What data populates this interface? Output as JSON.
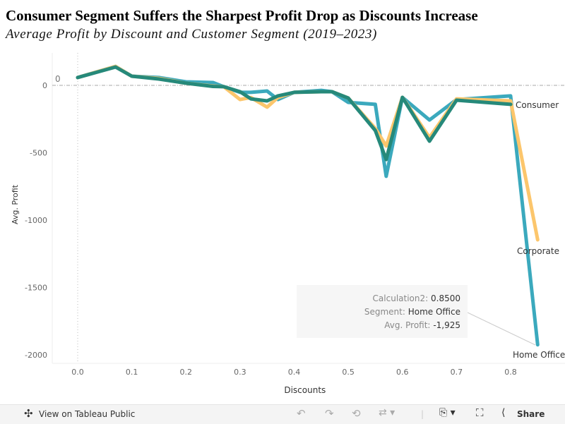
{
  "chart_data": {
    "type": "line",
    "title": "Consumer Segment Suffers the Sharpest Profit Drop as Discounts Increase",
    "subtitle": "Average Profit by Discount and Customer Segment (2019–2023)",
    "xlabel": "Discounts",
    "ylabel": "Avg. Profit",
    "xlim": [
      -0.05,
      0.88
    ],
    "ylim": [
      -2050,
      260
    ],
    "x_ticks": [
      "0.0",
      "0.1",
      "0.2",
      "0.3",
      "0.4",
      "0.5",
      "0.6",
      "0.7",
      "0.8"
    ],
    "y_ticks": [
      "0",
      "-500",
      "-1000",
      "-1500",
      "-2000"
    ],
    "reference_line": {
      "value": 0,
      "label": "0"
    },
    "grid": false,
    "series": [
      {
        "name": "Home Office",
        "color": "#3BA9BD",
        "x": [
          0,
          0.07,
          0.1,
          0.15,
          0.2,
          0.25,
          0.27,
          0.3,
          0.32,
          0.35,
          0.37,
          0.4,
          0.45,
          0.47,
          0.5,
          0.55,
          0.57,
          0.6,
          0.65,
          0.7,
          0.8,
          0.85
        ],
        "y": [
          58,
          141,
          68,
          58,
          26,
          21,
          -10,
          -52,
          -52,
          -42,
          -105,
          -52,
          -37,
          -47,
          -126,
          -141,
          -675,
          -89,
          -257,
          -105,
          -78,
          -1925
        ]
      },
      {
        "name": "Corporate",
        "color": "#FCC66C",
        "x": [
          0,
          0.07,
          0.1,
          0.15,
          0.2,
          0.25,
          0.27,
          0.3,
          0.32,
          0.35,
          0.37,
          0.4,
          0.45,
          0.47,
          0.5,
          0.55,
          0.57,
          0.6,
          0.65,
          0.7,
          0.8,
          0.85
        ],
        "y": [
          58,
          141,
          68,
          52,
          16,
          -5,
          -10,
          -105,
          -90,
          -162,
          -90,
          -52,
          -47,
          -47,
          -94,
          -320,
          -450,
          -89,
          -387,
          -100,
          -115,
          -1146
        ]
      },
      {
        "name": "Consumer",
        "color": "#26897A",
        "x": [
          0,
          0.07,
          0.1,
          0.15,
          0.2,
          0.25,
          0.27,
          0.3,
          0.32,
          0.35,
          0.37,
          0.4,
          0.45,
          0.47,
          0.5,
          0.55,
          0.57,
          0.6,
          0.65,
          0.7,
          0.8
        ],
        "y": [
          58,
          136,
          68,
          47,
          16,
          -8,
          -10,
          -47,
          -100,
          -115,
          -78,
          -52,
          -47,
          -47,
          -94,
          -335,
          -550,
          -89,
          -414,
          -110,
          -141
        ]
      }
    ],
    "tooltip": {
      "rows": [
        {
          "label": "Calculation2:",
          "value": "0.8500"
        },
        {
          "label": "Segment:",
          "value": "Home Office"
        },
        {
          "label": "Avg. Profit:",
          "value": "-1,925"
        }
      ]
    }
  },
  "toolbar": {
    "view_label": "View on Tableau Public",
    "share_label": "Share"
  }
}
